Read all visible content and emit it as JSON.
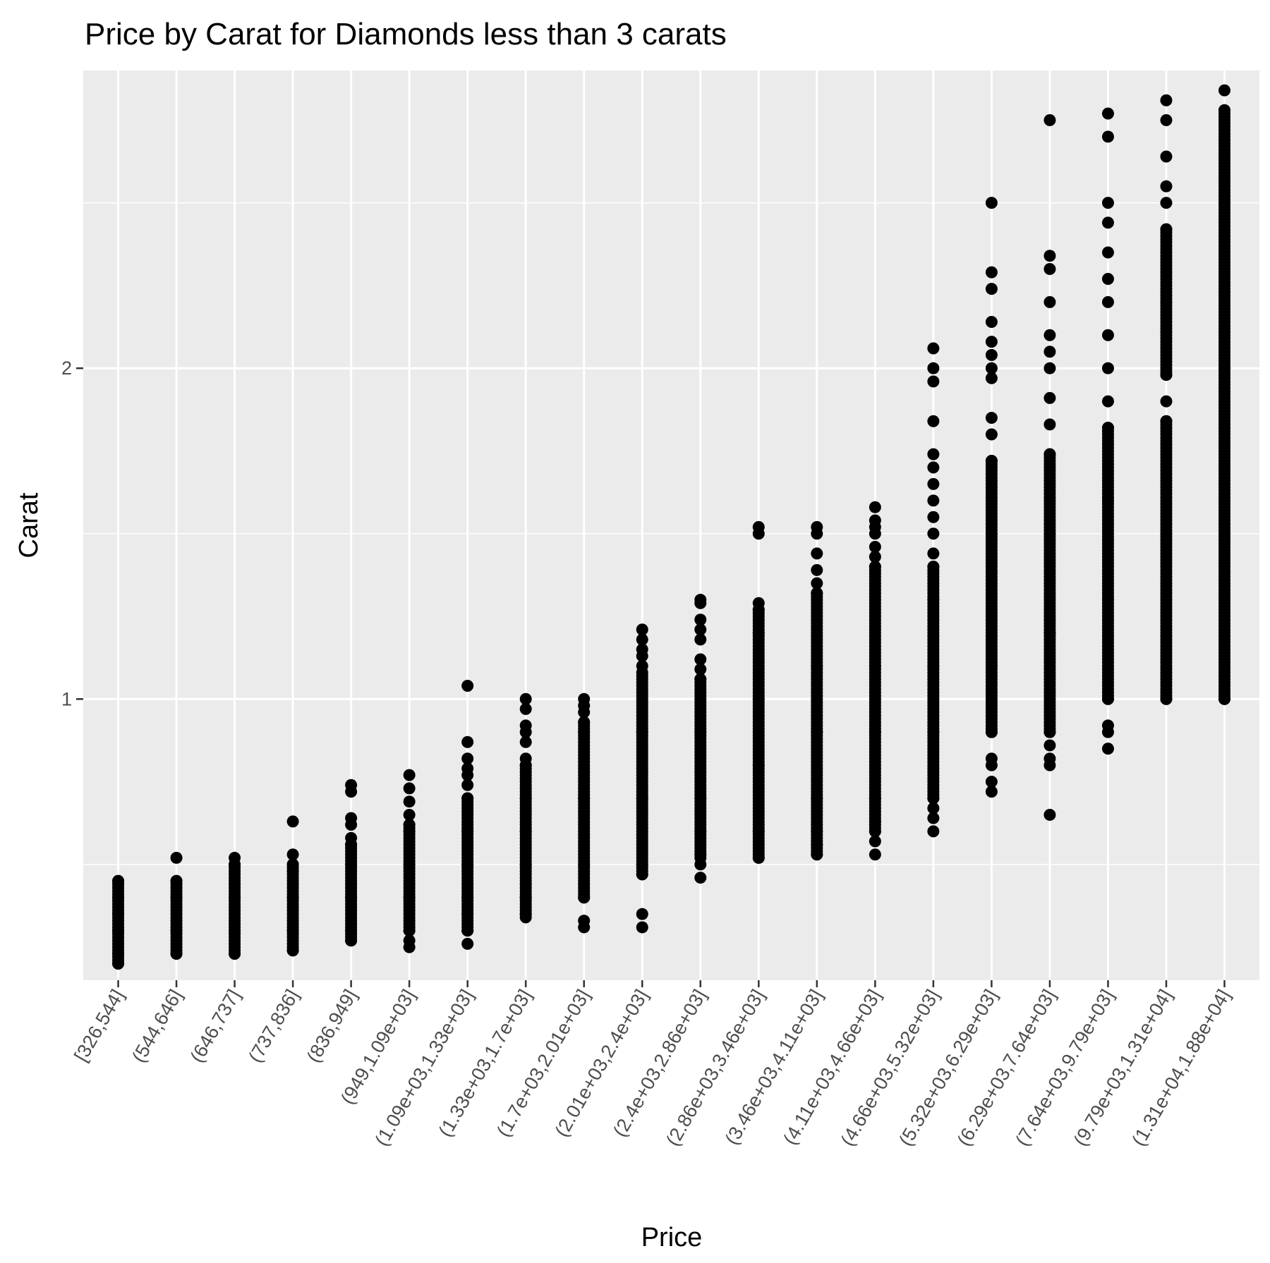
{
  "chart_data": {
    "type": "scatter",
    "title": "Price by Carat for Diamonds less than 3 carats",
    "xlabel": "Price",
    "ylabel": "Carat",
    "ylim": [
      0.15,
      2.9
    ],
    "y_ticks": [
      1,
      2
    ],
    "grid": true,
    "legend": "none",
    "colors": {
      "panel": "#ebebeb",
      "grid": "#ffffff",
      "point": "#000000",
      "tick": "#4d4d4d"
    },
    "categories": [
      "[326,544]",
      "(544,646]",
      "(646,737]",
      "(737,836]",
      "(836,949]",
      "(949,1.09e+03]",
      "(1.09e+03,1.33e+03]",
      "(1.33e+03,1.7e+03]",
      "(1.7e+03,2.01e+03]",
      "(2.01e+03,2.4e+03]",
      "(2.4e+03,2.86e+03]",
      "(2.86e+03,3.46e+03]",
      "(3.46e+03,4.11e+03]",
      "(4.11e+03,4.66e+03]",
      "(4.66e+03,5.32e+03]",
      "(5.32e+03,6.29e+03]",
      "(6.29e+03,7.64e+03]",
      "(7.64e+03,9.79e+03]",
      "(9.79e+03,1.31e+04]",
      "(1.31e+04,1.88e+04]"
    ],
    "series": [
      {
        "dense_ranges": [
          [
            0.2,
            0.45
          ]
        ],
        "points": [
          0.2,
          0.23,
          0.3,
          0.35,
          0.4,
          0.45
        ]
      },
      {
        "dense_ranges": [
          [
            0.23,
            0.45
          ]
        ],
        "points": [
          0.23,
          0.3,
          0.4,
          0.45,
          0.52
        ]
      },
      {
        "dense_ranges": [
          [
            0.23,
            0.5
          ]
        ],
        "points": [
          0.23,
          0.3,
          0.4,
          0.5,
          0.52
        ]
      },
      {
        "dense_ranges": [
          [
            0.24,
            0.5
          ]
        ],
        "points": [
          0.24,
          0.3,
          0.4,
          0.48,
          0.5,
          0.53,
          0.63
        ]
      },
      {
        "dense_ranges": [
          [
            0.27,
            0.56
          ]
        ],
        "points": [
          0.27,
          0.3,
          0.4,
          0.5,
          0.56,
          0.58,
          0.62,
          0.64,
          0.72,
          0.74
        ]
      },
      {
        "dense_ranges": [
          [
            0.3,
            0.62
          ]
        ],
        "points": [
          0.25,
          0.27,
          0.3,
          0.4,
          0.5,
          0.6,
          0.62,
          0.65,
          0.69,
          0.73,
          0.77
        ]
      },
      {
        "dense_ranges": [
          [
            0.3,
            0.7
          ]
        ],
        "points": [
          0.26,
          0.3,
          0.35,
          0.4,
          0.5,
          0.6,
          0.7,
          0.74,
          0.77,
          0.79,
          0.82,
          0.87,
          1.04
        ]
      },
      {
        "dense_ranges": [
          [
            0.35,
            0.8
          ]
        ],
        "points": [
          0.34,
          0.35,
          0.4,
          0.5,
          0.6,
          0.7,
          0.8,
          0.82,
          0.87,
          0.9,
          0.92,
          0.97,
          1.0
        ]
      },
      {
        "dense_ranges": [
          [
            0.4,
            0.93
          ]
        ],
        "points": [
          0.31,
          0.33,
          0.4,
          0.5,
          0.7,
          0.9,
          0.93,
          0.96,
          0.98,
          1.0
        ]
      },
      {
        "dense_ranges": [
          [
            0.47,
            1.08
          ]
        ],
        "points": [
          0.31,
          0.35,
          0.47,
          0.5,
          0.7,
          0.9,
          1.1,
          1.13,
          1.15,
          1.18,
          1.21
        ]
      },
      {
        "dense_ranges": [
          [
            0.52,
            1.06
          ]
        ],
        "points": [
          0.46,
          0.5,
          0.53,
          0.6,
          0.7,
          0.9,
          1.06,
          1.09,
          1.12,
          1.18,
          1.21,
          1.24,
          1.29,
          1.3
        ]
      },
      {
        "dense_ranges": [
          [
            0.52,
            1.27
          ]
        ],
        "points": [
          0.52,
          0.6,
          0.8,
          1.0,
          1.2,
          1.27,
          1.29,
          1.5,
          1.52
        ]
      },
      {
        "dense_ranges": [
          [
            0.53,
            1.32
          ]
        ],
        "points": [
          0.53,
          0.56,
          0.6,
          0.7,
          0.9,
          1.1,
          1.32,
          1.35,
          1.39,
          1.44,
          1.5,
          1.52
        ]
      },
      {
        "dense_ranges": [
          [
            0.6,
            1.4
          ]
        ],
        "points": [
          0.53,
          0.57,
          0.6,
          0.63,
          0.7,
          0.9,
          1.1,
          1.4,
          1.43,
          1.46,
          1.5,
          1.52,
          1.54,
          1.58
        ]
      },
      {
        "dense_ranges": [
          [
            0.7,
            1.4
          ]
        ],
        "points": [
          0.6,
          0.64,
          0.67,
          0.7,
          0.9,
          1.1,
          1.3,
          1.4,
          1.44,
          1.5,
          1.55,
          1.6,
          1.65,
          1.7,
          1.74,
          1.84,
          1.96,
          2.0,
          2.06
        ]
      },
      {
        "dense_ranges": [
          [
            0.9,
            1.72
          ]
        ],
        "points": [
          0.72,
          0.75,
          0.8,
          0.82,
          0.9,
          1.1,
          1.5,
          1.72,
          1.8,
          1.85,
          1.97,
          2.0,
          2.04,
          2.08,
          2.14,
          2.24,
          2.29,
          2.5
        ]
      },
      {
        "dense_ranges": [
          [
            0.9,
            1.74
          ]
        ],
        "points": [
          0.65,
          0.8,
          0.82,
          0.86,
          0.9,
          1.2,
          1.5,
          1.74,
          1.83,
          1.91,
          2.0,
          2.05,
          2.1,
          2.2,
          2.3,
          2.34,
          2.75
        ]
      },
      {
        "dense_ranges": [
          [
            1.0,
            1.82
          ]
        ],
        "points": [
          0.85,
          0.9,
          0.92,
          1.0,
          1.3,
          1.6,
          1.82,
          1.9,
          2.0,
          2.1,
          2.2,
          2.27,
          2.35,
          2.44,
          2.5,
          2.7,
          2.77
        ]
      },
      {
        "dense_ranges": [
          [
            1.0,
            1.84
          ],
          [
            1.98,
            2.42
          ]
        ],
        "points": [
          1.0,
          1.5,
          1.84,
          1.9,
          1.98,
          2.2,
          2.42,
          2.5,
          2.55,
          2.64,
          2.75,
          2.81
        ]
      },
      {
        "dense_ranges": [
          [
            1.0,
            2.78
          ]
        ],
        "points": [
          1.0,
          1.5,
          2.0,
          2.5,
          2.78,
          2.84
        ]
      }
    ]
  }
}
